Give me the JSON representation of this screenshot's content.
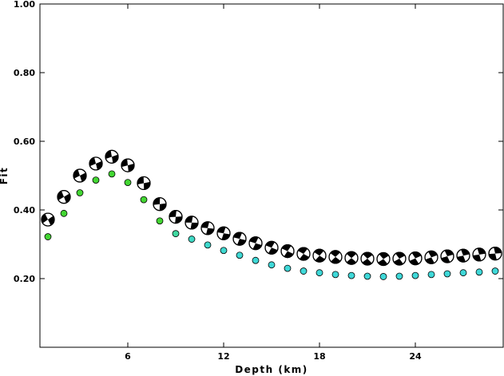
{
  "chart_data": {
    "type": "scatter",
    "title": "",
    "xlabel": "Depth (km)",
    "ylabel": "Fit",
    "xlim": [
      0.5,
      29.5
    ],
    "ylim": [
      0.0,
      1.0
    ],
    "x_ticks": [
      6,
      12,
      18,
      24
    ],
    "x_tick_labels": [
      "6",
      "12",
      "18",
      "24"
    ],
    "y_ticks": [
      0.2,
      0.4,
      0.6,
      0.8,
      1.0
    ],
    "y_tick_labels": [
      "0.20",
      "0.40",
      "0.60",
      "0.80",
      "1.00"
    ],
    "grid": false,
    "legend": "none",
    "series": [
      {
        "marker": "focal-mechanism",
        "color": "#000000",
        "x": [
          1,
          2,
          3,
          4,
          5,
          6,
          7,
          8,
          9,
          10,
          11,
          12,
          13,
          14,
          15,
          16,
          17,
          18,
          19,
          20,
          21,
          22,
          23,
          24,
          25,
          26,
          27,
          28,
          29
        ],
        "y": [
          0.372,
          0.438,
          0.5,
          0.535,
          0.555,
          0.53,
          0.478,
          0.417,
          0.38,
          0.363,
          0.347,
          0.332,
          0.316,
          0.303,
          0.29,
          0.28,
          0.272,
          0.267,
          0.263,
          0.26,
          0.258,
          0.257,
          0.258,
          0.259,
          0.262,
          0.265,
          0.267,
          0.27,
          0.273
        ]
      },
      {
        "marker": "circle",
        "colors": [
          "#43d633",
          "#43d633",
          "#43d633",
          "#43d633",
          "#43d633",
          "#43d633",
          "#43d633",
          "#43d633",
          "#3fd8a0",
          "#3fd8c4",
          "#3fd8cc",
          "#3fd8d0",
          "#3fd8d4",
          "#3fd8d6",
          "#3fd8d8",
          "#3fd8d8",
          "#3fd8d8",
          "#3fd8d8",
          "#3fd8d8",
          "#3fd8d8",
          "#3fd8d8",
          "#3fd8d8",
          "#3fd8d8",
          "#3fd8d8",
          "#3fd8d8",
          "#3fd8d8",
          "#3fd8d8",
          "#3fd8d8",
          "#3fd8d8"
        ],
        "x": [
          1,
          2,
          3,
          4,
          5,
          6,
          7,
          8,
          9,
          10,
          11,
          12,
          13,
          14,
          15,
          16,
          17,
          18,
          19,
          20,
          21,
          22,
          23,
          24,
          25,
          26,
          27,
          28,
          29
        ],
        "y": [
          0.322,
          0.39,
          0.45,
          0.487,
          0.505,
          0.48,
          0.43,
          0.368,
          0.331,
          0.315,
          0.298,
          0.282,
          0.268,
          0.253,
          0.24,
          0.23,
          0.222,
          0.217,
          0.212,
          0.209,
          0.207,
          0.206,
          0.207,
          0.209,
          0.212,
          0.214,
          0.217,
          0.219,
          0.222
        ]
      }
    ]
  }
}
